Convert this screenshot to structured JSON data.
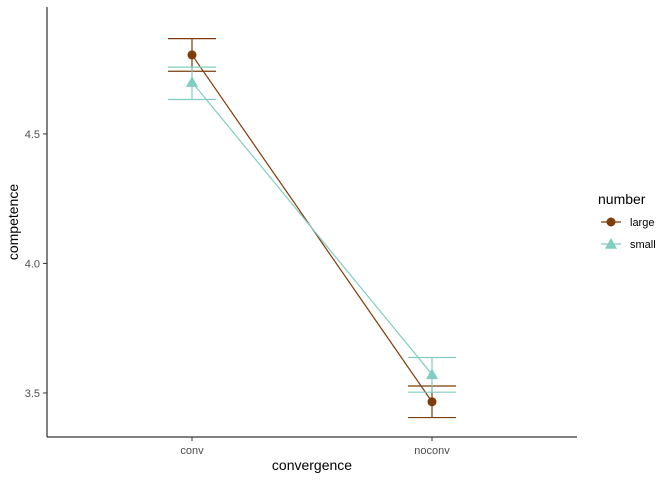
{
  "chart_data": {
    "type": "line",
    "xlabel": "convergence",
    "ylabel": "competence",
    "categories": [
      "conv",
      "noconv"
    ],
    "y_ticks": [
      3.5,
      4.0,
      4.5
    ],
    "y_tick_labels": [
      "3.5",
      "4.0",
      "4.5"
    ],
    "ylim": [
      3.33,
      4.99
    ],
    "grid": false,
    "legend": {
      "title": "number",
      "position": "right"
    },
    "series": [
      {
        "name": "large",
        "color": "#7f3b08",
        "marker": "circle",
        "values": [
          4.805,
          3.466
        ],
        "error_low": [
          4.742,
          3.405
        ],
        "error_high": [
          4.868,
          3.527
        ]
      },
      {
        "name": "small",
        "color": "#80cdc1",
        "marker": "triangle",
        "values": [
          4.7,
          3.572
        ],
        "error_low": [
          4.633,
          3.503
        ],
        "error_high": [
          4.758,
          3.637
        ]
      }
    ]
  }
}
